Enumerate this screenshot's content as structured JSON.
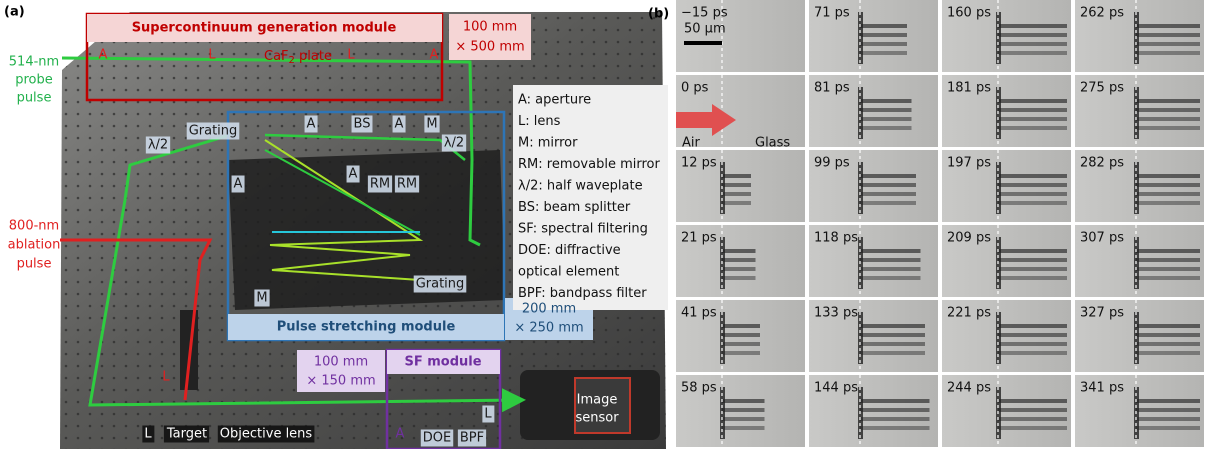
{
  "panel_a": {
    "label": "(a)",
    "modules": [
      {
        "title": "Supercontinuum generation module",
        "size": [
          "100 mm",
          "× 500 mm"
        ]
      },
      {
        "title": "Pulse stretching module",
        "size": [
          "200 mm",
          "× 250 mm"
        ]
      },
      {
        "title": "SF module",
        "size": [
          "100 mm",
          "× 150 mm"
        ]
      }
    ],
    "beams": [
      [
        "514-nm",
        "probe",
        "pulse"
      ],
      [
        "800-nm",
        "ablation",
        "pulse"
      ]
    ],
    "caf2_plate": [
      "CaF",
      "2",
      " plate"
    ],
    "components": [
      "A",
      "L",
      "L",
      "A",
      "Grating",
      "A",
      "BS",
      "A",
      "M",
      "λ/2",
      "λ/2",
      "A",
      "A",
      "RM",
      "RM",
      "M",
      "Grating",
      "L",
      "L",
      "Target",
      "Objective lens",
      "A",
      "DOE",
      "BPF",
      "L"
    ],
    "image_sensor": [
      "Image",
      "sensor"
    ],
    "legend": [
      "A: aperture",
      "L: lens",
      "M: mirror",
      "RM: removable mirror",
      "λ/2: half waveplate",
      "BS: beam splitter",
      "SF: spectral filtering",
      "DOE: diffractive",
      "optical element",
      "BPF: bandpass filter"
    ]
  },
  "panel_b": {
    "label": "(b)",
    "scale_bar": "50 μm",
    "media": [
      "Air",
      "Glass"
    ],
    "frames": [
      [
        "−15 ps",
        "71 ps",
        "160 ps",
        "262 ps"
      ],
      [
        "0 ps",
        "81 ps",
        "181 ps",
        "275 ps"
      ],
      [
        "12 ps",
        "99 ps",
        "197 ps",
        "282 ps"
      ],
      [
        "21 ps",
        "118 ps",
        "209 ps",
        "307 ps"
      ],
      [
        "41 ps",
        "133 ps",
        "221 ps",
        "327 ps"
      ],
      [
        "58 ps",
        "144 ps",
        "244 ps",
        "341 ps"
      ]
    ]
  }
}
